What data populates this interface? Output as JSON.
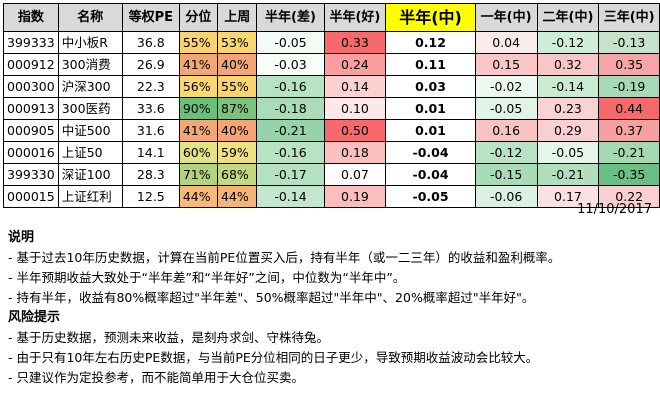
{
  "table": {
    "headers": [
      "指数",
      "名称",
      "等权PE",
      "分位",
      "上周",
      "半年(差)",
      "半年(好)",
      "半年(中)",
      "一年(中)",
      "二年(中)",
      "三年(中)"
    ],
    "rows": [
      {
        "code": "399333",
        "name": "中小板R",
        "pe": "36.8",
        "pct": "55%",
        "last": "53%",
        "bad": "-0.05",
        "good": "0.33",
        "mid": "0.12",
        "y1": "0.04",
        "y2": "-0.12",
        "y3": "-0.13"
      },
      {
        "code": "000912",
        "name": "300消费",
        "pe": "26.9",
        "pct": "41%",
        "last": "40%",
        "bad": "-0.03",
        "good": "0.24",
        "mid": "0.11",
        "y1": "0.15",
        "y2": "0.32",
        "y3": "0.35"
      },
      {
        "code": "000300",
        "name": "沪深300",
        "pe": "22.3",
        "pct": "56%",
        "last": "55%",
        "bad": "-0.16",
        "good": "0.14",
        "mid": "0.03",
        "y1": "-0.02",
        "y2": "-0.14",
        "y3": "-0.19"
      },
      {
        "code": "000913",
        "name": "300医药",
        "pe": "33.6",
        "pct": "90%",
        "last": "87%",
        "bad": "-0.18",
        "good": "0.10",
        "mid": "0.01",
        "y1": "-0.05",
        "y2": "0.23",
        "y3": "0.44"
      },
      {
        "code": "000905",
        "name": "中证500",
        "pe": "31.6",
        "pct": "41%",
        "last": "40%",
        "bad": "-0.21",
        "good": "0.50",
        "mid": "0.01",
        "y1": "0.16",
        "y2": "0.29",
        "y3": "0.37"
      },
      {
        "code": "000016",
        "name": "上证50",
        "pe": "14.1",
        "pct": "60%",
        "last": "59%",
        "bad": "-0.16",
        "good": "0.18",
        "mid": "-0.04",
        "y1": "-0.12",
        "y2": "-0.05",
        "y3": "-0.21"
      },
      {
        "code": "399330",
        "name": "深证100",
        "pe": "28.3",
        "pct": "71%",
        "last": "68%",
        "bad": "-0.17",
        "good": "0.07",
        "mid": "-0.04",
        "y1": "-0.15",
        "y2": "-0.21",
        "y3": "-0.35"
      },
      {
        "code": "000015",
        "name": "上证红利",
        "pe": "12.5",
        "pct": "44%",
        "last": "44%",
        "bad": "-0.14",
        "good": "0.19",
        "mid": "-0.05",
        "y1": "-0.06",
        "y2": "0.17",
        "y3": "0.22"
      }
    ],
    "colors": {
      "pct": [
        "#fbd36e",
        "#f3a774",
        "#fbd76f",
        "#6abf79",
        "#f3a774",
        "#e3e284",
        "#b4d37e",
        "#f7b976"
      ],
      "last": [
        "#fbd86f",
        "#f3a573",
        "#fad46e",
        "#7bc27c",
        "#f3a573",
        "#f0e080",
        "#c2d97f",
        "#f7b575"
      ],
      "bad": [
        "#f2fbf4",
        "#f8fdf9",
        "#b7e2c4",
        "#aadcba",
        "#96d3a8",
        "#b7e2c4",
        "#b3e1c1",
        "#c3e8ce"
      ],
      "good": [
        "#f8696b",
        "#fa9e9f",
        "#fbd0d1",
        "#fce8e8",
        "#f8696b",
        "#fbbfc0",
        "#fefcfc",
        "#fbbdbe"
      ],
      "mid": [
        "#ffffff",
        "#ffffff",
        "#ffffff",
        "#ffffff",
        "#ffffff",
        "#ffffff",
        "#ffffff",
        "#ffffff"
      ],
      "y1": [
        "#fbeaea",
        "#fac6c7",
        "#edf8ef",
        "#e0f3e5",
        "#f9c2c3",
        "#b9e3c6",
        "#a8dbb8",
        "#dcf1e2"
      ],
      "y2": [
        "#cfeed7",
        "#f7c7c8",
        "#c9ebd2",
        "#f9d3d3",
        "#f8d0d1",
        "#e6f5ea",
        "#b1dfbe",
        "#fbe1e2"
      ],
      "y3": [
        "#c3e4cb",
        "#f6a5a6",
        "#a7d9b4",
        "#f8696b",
        "#f7a0a1",
        "#a3d8b0",
        "#6cbf83",
        "#f9cfd0"
      ]
    }
  },
  "date": "11/10/2017",
  "notes": {
    "title1": "说明",
    "items1": [
      "- 基于过去10年历史数据，计算在当前PE位置买入后，持有半年（或一二三年）的收益和盈利概率。",
      "- 半年预期收益大致处于“半年差”和“半年好”之间，中位数为“半年中”。",
      "- 持有半年，收益有80%概率超过\"半年差\"、50%概率超过\"半年中\"、20%概率超过\"半年好\"。"
    ],
    "title2": "风险提示",
    "items2": [
      "- 基于历史数据，预测未来收益，是刻舟求剑、守株待兔。",
      "- 由于只有10年左右历史PE数据，与当前PE分位相同的日子更少，导致预期收益波动会比较大。",
      "- 只建议作为定投参考，而不能简单用于大仓位买卖。"
    ]
  }
}
